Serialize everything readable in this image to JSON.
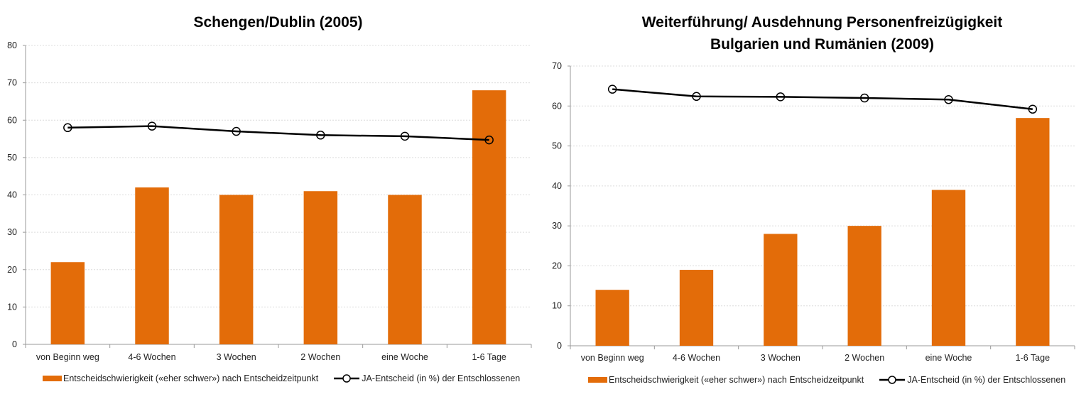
{
  "colors": {
    "bar": "#E36C09",
    "line": "#000000",
    "grid": "#DCDCDC",
    "axis": "#999999"
  },
  "chart_data": [
    {
      "type": "bar",
      "title_lines": [
        "Schengen/Dublin (2005)"
      ],
      "categories": [
        "von Beginn weg",
        "4-6 Wochen",
        "3 Wochen",
        "2 Wochen",
        "eine Woche",
        "1-6 Tage"
      ],
      "series": [
        {
          "name": "Entscheidschwierigkeit («eher schwer») nach Entscheidzeitpunkt",
          "kind": "bar",
          "values": [
            22,
            42,
            40,
            41,
            40,
            68
          ]
        },
        {
          "name": "JA-Entscheid (in %) der Entschlossenen",
          "kind": "line",
          "values": [
            58,
            58.4,
            57,
            56,
            55.7,
            54.7
          ]
        }
      ],
      "ylim": [
        0,
        80
      ],
      "yticks": [
        "0",
        "10",
        "20",
        "30",
        "40",
        "50",
        "60",
        "70",
        "80"
      ],
      "grid": true,
      "legend": "bottom"
    },
    {
      "type": "bar",
      "title_lines": [
        "Weiterführung/ Ausdehnung Personenfreizügigkeit",
        "Bulgarien und Rumänien (2009)"
      ],
      "categories": [
        "von Beginn weg",
        "4-6 Wochen",
        "3 Wochen",
        "2 Wochen",
        "eine Woche",
        "1-6 Tage"
      ],
      "series": [
        {
          "name": "Entscheidschwierigkeit («eher schwer») nach Entscheidzeitpunkt",
          "kind": "bar",
          "values": [
            14,
            19,
            28,
            30,
            39,
            57
          ]
        },
        {
          "name": "JA-Entscheid (in %) der Entschlossenen",
          "kind": "line",
          "values": [
            64.2,
            62.4,
            62.3,
            62,
            61.6,
            59.2
          ]
        }
      ],
      "ylim": [
        0,
        70
      ],
      "yticks": [
        "0",
        "10",
        "20",
        "30",
        "40",
        "50",
        "60",
        "70"
      ],
      "grid": true,
      "legend": "bottom"
    }
  ]
}
